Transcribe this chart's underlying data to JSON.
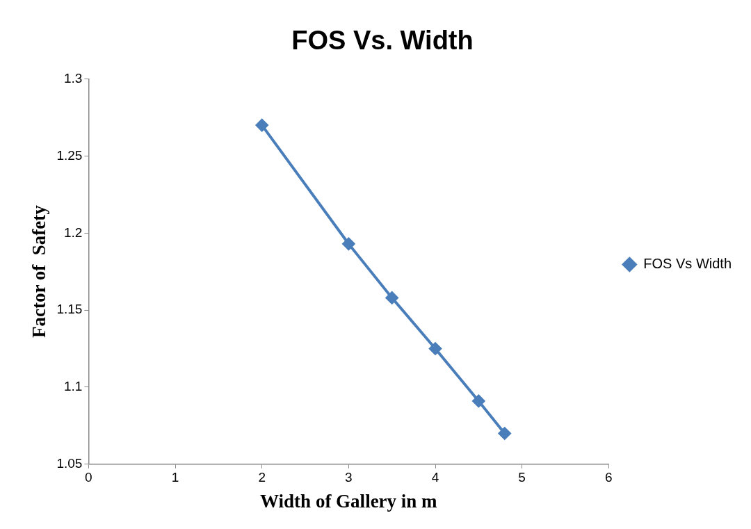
{
  "chart_data": {
    "type": "line",
    "title": "FOS Vs. Width",
    "xlabel": "Width of Gallery in m",
    "ylabel": "Factor of  Safety",
    "x": [
      2,
      3,
      3.5,
      4,
      4.5,
      4.8
    ],
    "series": [
      {
        "name": "FOS Vs Width",
        "color": "#4a7ebb",
        "values": [
          1.27,
          1.193,
          1.158,
          1.125,
          1.091,
          1.07
        ]
      }
    ],
    "xlim": [
      0,
      6
    ],
    "xticks": [
      0,
      1,
      2,
      3,
      4,
      5,
      6
    ],
    "ylim": [
      1.05,
      1.3
    ],
    "yticks": [
      1.05,
      1.1,
      1.15,
      1.2,
      1.25,
      1.3
    ],
    "grid": false,
    "legend": "right",
    "marker": "diamond",
    "line_style": "solid"
  }
}
